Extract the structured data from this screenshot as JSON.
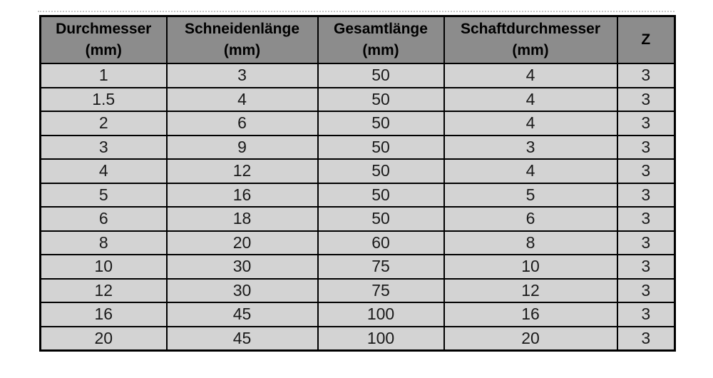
{
  "colors": {
    "header_background": "#8c8c8c",
    "row_background": "#d3d3d3",
    "grid_border": "#000000",
    "page_break_line": "#c6c6c6",
    "page_background": "#ffffff"
  },
  "table": {
    "columns": [
      {
        "line1": "Durchmesser",
        "line2": "(mm)"
      },
      {
        "line1": "Schneidenlänge",
        "line2": "(mm)"
      },
      {
        "line1": "Gesamtlänge",
        "line2": "(mm)"
      },
      {
        "line1": "Schaftdurchmesser",
        "line2": "(mm)"
      },
      {
        "line1": "Z",
        "line2": ""
      }
    ],
    "rows": [
      [
        "1",
        "3",
        "50",
        "4",
        "3"
      ],
      [
        "1.5",
        "4",
        "50",
        "4",
        "3"
      ],
      [
        "2",
        "6",
        "50",
        "4",
        "3"
      ],
      [
        "3",
        "9",
        "50",
        "3",
        "3"
      ],
      [
        "4",
        "12",
        "50",
        "4",
        "3"
      ],
      [
        "5",
        "16",
        "50",
        "5",
        "3"
      ],
      [
        "6",
        "18",
        "50",
        "6",
        "3"
      ],
      [
        "8",
        "20",
        "60",
        "8",
        "3"
      ],
      [
        "10",
        "30",
        "75",
        "10",
        "3"
      ],
      [
        "12",
        "30",
        "75",
        "12",
        "3"
      ],
      [
        "16",
        "45",
        "100",
        "16",
        "3"
      ],
      [
        "20",
        "45",
        "100",
        "20",
        "3"
      ]
    ]
  },
  "chart_data": {
    "type": "table",
    "title": "",
    "columns": [
      "Durchmesser (mm)",
      "Schneidenlänge (mm)",
      "Gesamtlänge (mm)",
      "Schaftdurchmesser (mm)",
      "Z"
    ],
    "rows": [
      [
        1,
        3,
        50,
        4,
        3
      ],
      [
        1.5,
        4,
        50,
        4,
        3
      ],
      [
        2,
        6,
        50,
        4,
        3
      ],
      [
        3,
        9,
        50,
        3,
        3
      ],
      [
        4,
        12,
        50,
        4,
        3
      ],
      [
        5,
        16,
        50,
        5,
        3
      ],
      [
        6,
        18,
        50,
        6,
        3
      ],
      [
        8,
        20,
        60,
        8,
        3
      ],
      [
        10,
        30,
        75,
        10,
        3
      ],
      [
        12,
        30,
        75,
        12,
        3
      ],
      [
        16,
        45,
        100,
        16,
        3
      ],
      [
        20,
        45,
        100,
        20,
        3
      ]
    ],
    "layout_hints": {
      "header_style": "gray fill, bold black text, two-line headers",
      "body_style": "light gray fill, black gridlines",
      "grid": true
    }
  }
}
